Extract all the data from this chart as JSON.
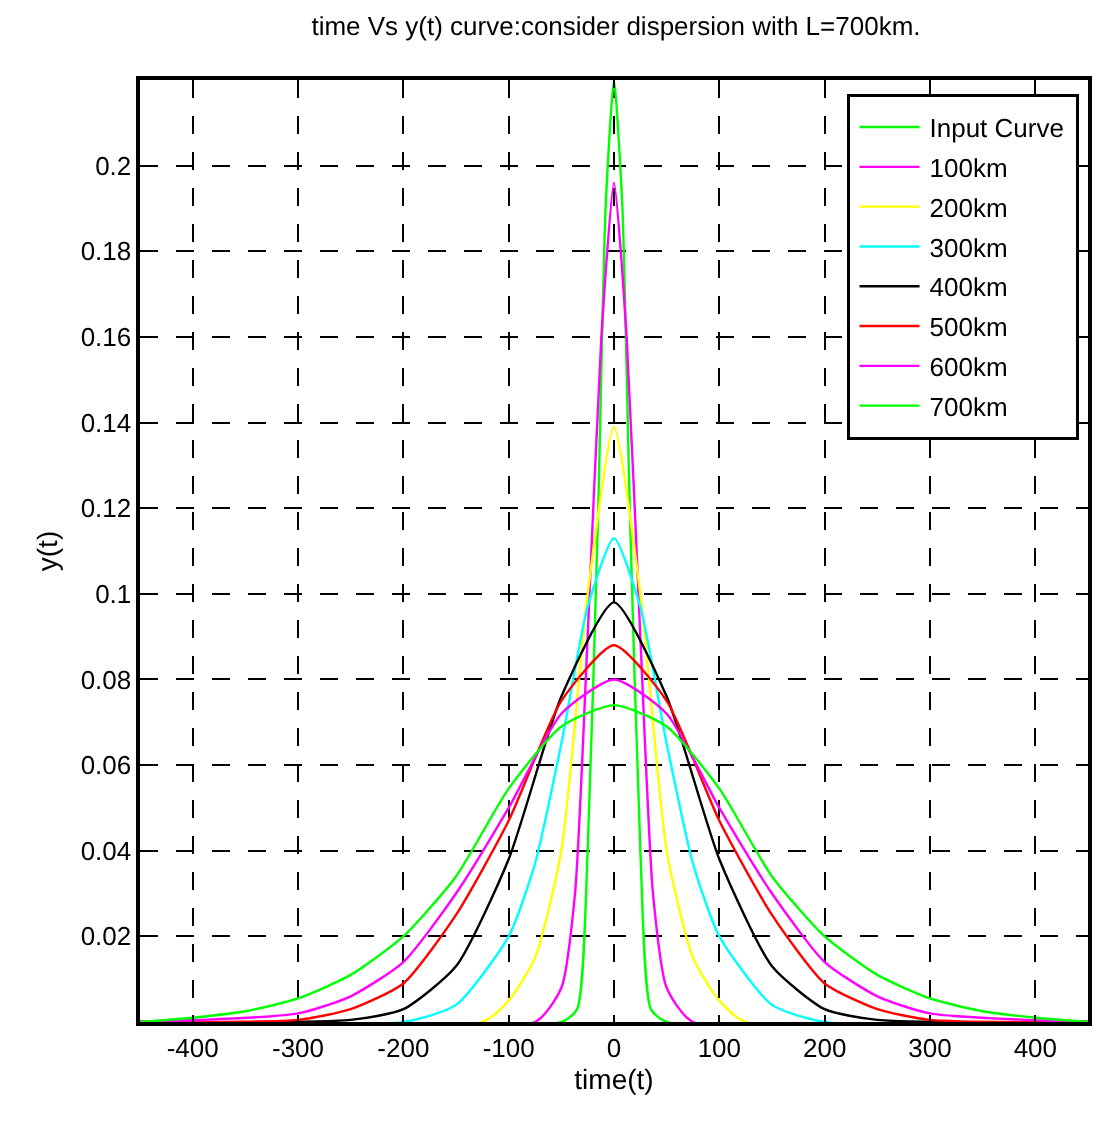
{
  "chart_data": {
    "type": "line",
    "title": "time Vs y(t) curve:consider dispersion with L=700km.",
    "xlabel": "time(t)",
    "ylabel": "y(t)",
    "xlim": [
      -450,
      450
    ],
    "ylim": [
      0,
      0.22
    ],
    "xticks": [
      -400,
      -300,
      -200,
      -100,
      0,
      100,
      200,
      300,
      400
    ],
    "yticks": [
      0.02,
      0.04,
      0.06,
      0.08,
      0.1,
      0.12,
      0.14,
      0.16,
      0.18,
      0.2
    ],
    "grid": true,
    "line_style": "solid",
    "legend": "top right",
    "marker": "none",
    "series": [
      {
        "name": "Input Curve",
        "color": "#00ff00",
        "x": [
          -450,
          -50,
          -35,
          -25,
          -15,
          -8,
          0,
          8,
          15,
          25,
          35,
          50,
          450
        ],
        "values": [
          0,
          0,
          0.003,
          0.04,
          0.12,
          0.19,
          0.22,
          0.19,
          0.12,
          0.04,
          0.003,
          0,
          0
        ]
      },
      {
        "name": "100km",
        "color": "#ff00ff",
        "x": [
          -450,
          -75,
          -50,
          -37,
          -25,
          -12,
          0,
          12,
          25,
          37,
          50,
          75,
          450
        ],
        "values": [
          0,
          0,
          0.008,
          0.03,
          0.09,
          0.16,
          0.196,
          0.16,
          0.09,
          0.03,
          0.008,
          0,
          0
        ]
      },
      {
        "name": "200km",
        "color": "#ffff00",
        "x": [
          -450,
          -125,
          -100,
          -75,
          -50,
          -25,
          0,
          25,
          50,
          75,
          100,
          125,
          450
        ],
        "values": [
          0,
          0,
          0.005,
          0.015,
          0.04,
          0.1,
          0.139,
          0.1,
          0.04,
          0.015,
          0.005,
          0,
          0
        ]
      },
      {
        "name": "300km",
        "color": "#00ffff",
        "x": [
          -450,
          -200,
          -150,
          -100,
          -75,
          -50,
          -25,
          0,
          25,
          50,
          75,
          100,
          150,
          200,
          450
        ],
        "values": [
          0,
          0,
          0.004,
          0.02,
          0.037,
          0.065,
          0.097,
          0.113,
          0.097,
          0.065,
          0.037,
          0.02,
          0.004,
          0,
          0
        ]
      },
      {
        "name": "400km",
        "color": "#000000",
        "x": [
          -450,
          -250,
          -200,
          -150,
          -100,
          -50,
          0,
          50,
          100,
          150,
          200,
          250,
          450
        ],
        "values": [
          0,
          0.0005,
          0.003,
          0.013,
          0.038,
          0.076,
          0.098,
          0.076,
          0.038,
          0.013,
          0.003,
          0.0005,
          0
        ]
      },
      {
        "name": "500km",
        "color": "#ff0000",
        "x": [
          -450,
          -300,
          -250,
          -200,
          -150,
          -100,
          -50,
          0,
          50,
          100,
          150,
          200,
          250,
          300,
          450
        ],
        "values": [
          0,
          0.0005,
          0.003,
          0.009,
          0.025,
          0.047,
          0.075,
          0.088,
          0.075,
          0.047,
          0.025,
          0.009,
          0.003,
          0.0005,
          0
        ]
      },
      {
        "name": "600km",
        "color": "#ff00ff",
        "x": [
          -450,
          -300,
          -250,
          -200,
          -150,
          -100,
          -50,
          0,
          50,
          100,
          150,
          200,
          250,
          300,
          450
        ],
        "values": [
          0,
          0.002,
          0.006,
          0.014,
          0.03,
          0.05,
          0.072,
          0.08,
          0.072,
          0.05,
          0.03,
          0.014,
          0.006,
          0.002,
          0
        ]
      },
      {
        "name": "700km",
        "color": "#00ff00",
        "x": [
          -450,
          -400,
          -350,
          -300,
          -250,
          -200,
          -150,
          -100,
          -50,
          0,
          50,
          100,
          150,
          200,
          250,
          300,
          350,
          400,
          450
        ],
        "values": [
          0,
          0.001,
          0.0025,
          0.0055,
          0.011,
          0.02,
          0.034,
          0.0545,
          0.069,
          0.074,
          0.069,
          0.0545,
          0.034,
          0.02,
          0.011,
          0.0055,
          0.0025,
          0.001,
          0
        ]
      }
    ]
  }
}
